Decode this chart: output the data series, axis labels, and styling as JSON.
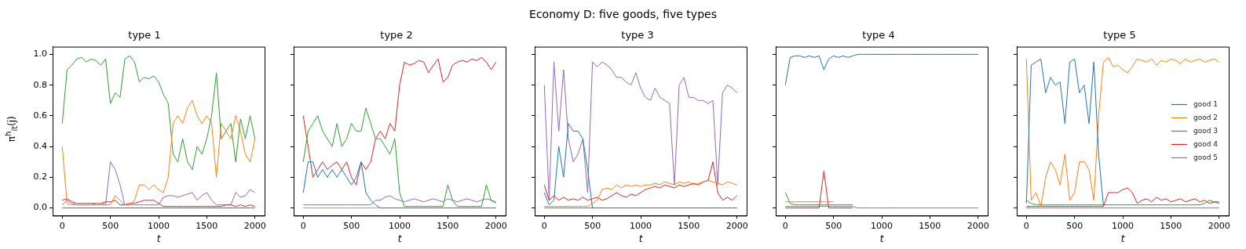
{
  "chart_data": [
    {
      "type": "line",
      "title": "type 1",
      "xlabel": "t",
      "ylabel": "π$^{h}$$_{it}$(j)",
      "annotations": [
        "Economy D: five goods, five types"
      ],
      "grid": false,
      "xlim": [
        -100,
        2100
      ],
      "ylim": [
        -0.05,
        1.05
      ],
      "xticks": [
        0,
        500,
        1000,
        1500,
        2000
      ],
      "yticks": [
        {
          "value": 0,
          "label": "0.0"
        },
        0.2,
        0.4,
        0.6,
        0.8,
        {
          "value": 1,
          "label": "1.0"
        }
      ],
      "x": [
        0,
        50,
        100,
        150,
        200,
        250,
        300,
        350,
        400,
        450,
        500,
        550,
        600,
        650,
        700,
        750,
        800,
        850,
        900,
        950,
        1000,
        1050,
        1100,
        1150,
        1200,
        1250,
        1300,
        1350,
        1400,
        1450,
        1500,
        1550,
        1600,
        1650,
        1700,
        1750,
        1800,
        1850,
        1900,
        1950,
        2000
      ],
      "series": [
        {
          "color": "#1f77b4",
          "values": [
            0,
            0,
            0,
            0,
            0,
            0,
            0,
            0,
            0,
            0,
            0,
            0,
            0,
            0,
            0,
            0,
            0,
            0,
            0,
            0,
            0,
            0,
            0,
            0,
            0,
            0,
            0,
            0,
            0,
            0,
            0,
            0,
            0,
            0,
            0,
            0,
            0,
            0,
            0,
            0,
            0
          ]
        },
        {
          "color": "#ff7f0e",
          "values": [
            0.4,
            0.03,
            0.02,
            0.02,
            0.02,
            0.02,
            0.02,
            0.03,
            0.03,
            0.02,
            0.02,
            0.08,
            0.05,
            0.02,
            0.02,
            0.05,
            0.15,
            0.15,
            0.12,
            0.15,
            0.12,
            0.1,
            0.2,
            0.55,
            0.6,
            0.55,
            0.65,
            0.7,
            0.6,
            0.55,
            0.6,
            0.55,
            0.2,
            0.55,
            0.5,
            0.45,
            0.6,
            0.5,
            0.35,
            0.3,
            0.45
          ]
        },
        {
          "color": "#2ca02c",
          "values": [
            0.55,
            0.9,
            0.93,
            0.97,
            0.98,
            0.95,
            0.97,
            0.96,
            0.93,
            0.97,
            0.68,
            0.75,
            0.72,
            0.97,
            0.99,
            0.95,
            0.82,
            0.85,
            0.84,
            0.86,
            0.82,
            0.74,
            0.68,
            0.35,
            0.3,
            0.45,
            0.3,
            0.25,
            0.4,
            0.35,
            0.45,
            0.6,
            0.88,
            0.45,
            0.5,
            0.55,
            0.3,
            0.58,
            0.45,
            0.6,
            0.45
          ]
        },
        {
          "color": "#d62728",
          "values": [
            0.05,
            0.06,
            0.04,
            0.03,
            0.03,
            0.03,
            0.03,
            0.03,
            0.03,
            0.04,
            0.04,
            0.05,
            0.02,
            0.02,
            0.03,
            0.03,
            0.04,
            0.05,
            0.05,
            0.05,
            0.03,
            0.01,
            0.01,
            0.01,
            0.01,
            0.01,
            0.01,
            0.01,
            0.01,
            0.01,
            0.01,
            0.01,
            0.01,
            0.01,
            0.02,
            0.02,
            0.01,
            0.02,
            0.01,
            0.02,
            0.01
          ]
        },
        {
          "color": "#9467bd",
          "values": [
            0.02,
            0.05,
            0.03,
            0.02,
            0.02,
            0.02,
            0.02,
            0.02,
            0.02,
            0.02,
            0.3,
            0.25,
            0.15,
            0.02,
            0.02,
            0.02,
            0.02,
            0.02,
            0.02,
            0.02,
            0.02,
            0.07,
            0.08,
            0.08,
            0.07,
            0.08,
            0.09,
            0.1,
            0.05,
            0.08,
            0.1,
            0.05,
            0.02,
            0.02,
            0.02,
            0.02,
            0.1,
            0.07,
            0.08,
            0.12,
            0.1
          ]
        }
      ]
    },
    {
      "type": "line",
      "title": "type 2",
      "xlabel": "t",
      "grid": false,
      "tick_labels": "x",
      "xlim": [
        -100,
        2100
      ],
      "ylim": [
        -0.05,
        1.05
      ],
      "xticks": [
        0,
        500,
        1000,
        1500,
        2000
      ],
      "yticks": [
        0,
        0.2,
        0.4,
        0.6,
        0.8,
        1
      ],
      "x": [
        0,
        50,
        100,
        150,
        200,
        250,
        300,
        350,
        400,
        450,
        500,
        550,
        600,
        650,
        700,
        750,
        800,
        850,
        900,
        950,
        1000,
        1050,
        1100,
        1150,
        1200,
        1250,
        1300,
        1350,
        1400,
        1450,
        1500,
        1550,
        1600,
        1650,
        1700,
        1750,
        1800,
        1850,
        1900,
        1950,
        2000
      ],
      "series": [
        {
          "color": "#1f77b4",
          "values": [
            0.1,
            0.3,
            0.3,
            0.2,
            0.25,
            0.2,
            0.25,
            0.2,
            0.25,
            0.2,
            0.15,
            0.2,
            0.3,
            0.1,
            0.05,
            0.02,
            0,
            0,
            0,
            0,
            0,
            0,
            0,
            0,
            0,
            0,
            0,
            0,
            0,
            0,
            0,
            0,
            0,
            0,
            0,
            0,
            0,
            0,
            0,
            0,
            0
          ]
        },
        {
          "color": "#ff7f0e",
          "values": [
            0,
            0,
            0,
            0,
            0,
            0,
            0,
            0,
            0,
            0,
            0,
            0,
            0,
            0,
            0,
            0,
            0,
            null,
            null,
            null,
            null,
            null,
            null,
            null,
            null,
            null,
            null,
            null,
            null,
            null,
            null,
            null,
            null,
            null,
            null,
            null,
            null,
            null,
            null,
            null,
            null
          ]
        },
        {
          "color": "#2ca02c",
          "values": [
            0.3,
            0.5,
            0.55,
            0.6,
            0.5,
            0.45,
            0.4,
            0.55,
            0.4,
            0.45,
            0.55,
            0.5,
            0.5,
            0.65,
            0.55,
            0.45,
            0.45,
            0.4,
            0.35,
            0.45,
            0.1,
            0.01,
            0.01,
            0.01,
            0.01,
            0.01,
            0.01,
            0.01,
            0.01,
            0.01,
            0.15,
            0.05,
            0.01,
            0.01,
            0.01,
            0.01,
            0.01,
            0.01,
            0.15,
            0.05,
            0.03
          ]
        },
        {
          "color": "#d62728",
          "values": [
            0.6,
            0.4,
            0.2,
            0.25,
            0.3,
            0.25,
            0.28,
            0.3,
            0.25,
            0.3,
            0.2,
            0.15,
            0.3,
            0.25,
            0.3,
            0.45,
            0.5,
            0.45,
            0.55,
            0.5,
            0.8,
            0.95,
            0.93,
            0.94,
            0.96,
            0.95,
            0.88,
            0.93,
            0.97,
            0.82,
            0.85,
            0.93,
            0.95,
            0.96,
            0.95,
            0.97,
            0.96,
            0.98,
            0.95,
            0.9,
            0.95
          ]
        },
        {
          "color": "#9467bd",
          "values": [
            0.02,
            0.02,
            0.02,
            0.02,
            0.02,
            0.02,
            0.02,
            0.02,
            0.02,
            0.02,
            0.02,
            0.02,
            0.02,
            0.02,
            0.02,
            0.05,
            0.05,
            0.07,
            0.08,
            0.06,
            0.05,
            0.04,
            0.05,
            0.06,
            0.05,
            0.04,
            0.05,
            0.06,
            0.05,
            0.04,
            0.06,
            0.05,
            0.04,
            0.05,
            0.06,
            0.05,
            0.04,
            0.05,
            0.06,
            0.05,
            0.04
          ]
        }
      ]
    },
    {
      "type": "line",
      "title": "type 3",
      "xlabel": "t",
      "grid": false,
      "tick_labels": "x",
      "xlim": [
        -100,
        2100
      ],
      "ylim": [
        -0.05,
        1.05
      ],
      "xticks": [
        0,
        500,
        1000,
        1500,
        2000
      ],
      "yticks": [
        0,
        0.2,
        0.4,
        0.6,
        0.8,
        1
      ],
      "x": [
        0,
        50,
        100,
        150,
        200,
        250,
        300,
        350,
        400,
        450,
        500,
        550,
        600,
        650,
        700,
        750,
        800,
        850,
        900,
        950,
        1000,
        1050,
        1100,
        1150,
        1200,
        1250,
        1300,
        1350,
        1400,
        1450,
        1500,
        1550,
        1600,
        1650,
        1700,
        1750,
        1800,
        1850,
        1900,
        1950,
        2000
      ],
      "series": [
        {
          "color": "#1f77b4",
          "values": [
            0.1,
            0.02,
            0.05,
            0.4,
            0.2,
            0.55,
            0.5,
            0.5,
            0.45,
            0.25,
            0,
            0,
            0,
            0,
            0,
            0,
            0,
            0,
            0,
            0,
            0,
            0,
            0,
            0,
            0,
            0,
            0,
            0,
            0,
            0,
            0,
            0,
            0,
            0,
            0,
            0,
            0,
            0,
            0,
            0,
            0
          ]
        },
        {
          "color": "#ff7f0e",
          "values": [
            0.01,
            0.01,
            0.01,
            0.01,
            0.01,
            0.01,
            0.01,
            0.01,
            0.01,
            0.01,
            0.03,
            0.05,
            0.12,
            0.13,
            0.12,
            0.15,
            0.13,
            0.15,
            0.14,
            0.15,
            0.14,
            0.15,
            0.15,
            0.16,
            0.15,
            0.17,
            0.16,
            0.15,
            0.17,
            0.16,
            0.17,
            0.15,
            0.16,
            0.17,
            0.18,
            0.17,
            0.16,
            0.15,
            0.17,
            0.16,
            0.15
          ]
        },
        {
          "color": "#2ca02c",
          "values": [
            0,
            0,
            0,
            0,
            0,
            0,
            0,
            0,
            0,
            0,
            0,
            null,
            null,
            null,
            null,
            null,
            null,
            null,
            null,
            null,
            null,
            null,
            null,
            null,
            null,
            null,
            null,
            null,
            null,
            null,
            null,
            null,
            null,
            null,
            null,
            null,
            null,
            null,
            null,
            null,
            null
          ]
        },
        {
          "color": "#d62728",
          "values": [
            0.15,
            0.05,
            0.08,
            0.05,
            0.07,
            0.05,
            0.06,
            0.05,
            0.07,
            0.05,
            0.06,
            0.07,
            0.05,
            0.06,
            0.08,
            0.1,
            0.08,
            0.07,
            0.09,
            0.08,
            0.1,
            0.12,
            0.13,
            0.14,
            0.13,
            0.15,
            0.14,
            0.13,
            0.15,
            0.14,
            0.15,
            0.16,
            0.15,
            0.17,
            0.18,
            0.3,
            0.1,
            0.05,
            0.07,
            0.05,
            0.08
          ]
        },
        {
          "color": "#9467bd",
          "values": [
            0.8,
            0.05,
            0.95,
            0.5,
            0.9,
            0.45,
            0.3,
            0.35,
            0.45,
            0.1,
            0.95,
            0.92,
            0.95,
            0.93,
            0.9,
            0.85,
            0.85,
            0.82,
            0.8,
            0.88,
            0.78,
            0.72,
            0.7,
            0.78,
            0.72,
            0.7,
            0.68,
            0.15,
            0.8,
            0.85,
            0.72,
            0.72,
            0.7,
            0.7,
            0.68,
            0.7,
            0.15,
            0.75,
            0.8,
            0.78,
            0.75
          ]
        }
      ]
    },
    {
      "type": "line",
      "title": "type 4",
      "xlabel": "t",
      "grid": false,
      "tick_labels": "x",
      "xlim": [
        -100,
        2100
      ],
      "ylim": [
        -0.05,
        1.05
      ],
      "xticks": [
        0,
        500,
        1000,
        1500,
        2000
      ],
      "yticks": [
        0,
        0.2,
        0.4,
        0.6,
        0.8,
        1
      ],
      "x": [
        0,
        50,
        100,
        150,
        200,
        250,
        300,
        350,
        400,
        450,
        500,
        550,
        600,
        650,
        700,
        750,
        800,
        850,
        900,
        950,
        1000,
        1050,
        1100,
        1150,
        1200,
        1250,
        1300,
        1350,
        1400,
        1450,
        1500,
        1550,
        1600,
        1650,
        1700,
        1750,
        1800,
        1850,
        1900,
        1950,
        2000
      ],
      "series": [
        {
          "color": "#1f77b4",
          "values": [
            0.8,
            0.98,
            0.99,
            0.99,
            0.98,
            0.99,
            0.98,
            0.99,
            0.9,
            0.97,
            0.99,
            0.98,
            0.99,
            0.98,
            0.99,
            1,
            1,
            1,
            1,
            1,
            1,
            1,
            1,
            1,
            1,
            1,
            1,
            1,
            1,
            1,
            1,
            1,
            1,
            1,
            1,
            1,
            1,
            1,
            1,
            1,
            1
          ]
        },
        {
          "color": "#ff7f0e",
          "values": [
            0.04,
            0.04,
            0.04,
            0.04,
            0.04,
            0.04,
            0.04,
            0.04,
            0.04,
            0.04,
            0.04,
            null,
            null,
            null,
            null,
            null,
            null,
            null,
            null,
            null,
            null,
            null,
            null,
            null,
            null,
            null,
            null,
            null,
            null,
            null,
            null,
            null,
            null,
            null,
            null,
            null,
            null,
            null,
            null,
            null,
            null
          ]
        },
        {
          "color": "#2ca02c",
          "values": [
            0.1,
            0.03,
            0.02,
            0.02,
            0.02,
            0.02,
            0.02,
            0.02,
            0.02,
            0.02,
            0.02,
            0.02,
            0.02,
            0.02,
            0.02,
            null,
            null,
            null,
            null,
            null,
            null,
            null,
            null,
            null,
            null,
            null,
            null,
            null,
            null,
            null,
            null,
            null,
            null,
            null,
            null,
            null,
            null,
            null,
            null,
            null,
            null
          ]
        },
        {
          "color": "#d62728",
          "values": [
            0,
            0,
            0,
            0,
            0,
            0,
            0,
            0,
            0.24,
            0,
            0,
            0,
            0,
            0,
            0,
            null,
            null,
            null,
            null,
            null,
            null,
            null,
            null,
            null,
            null,
            null,
            null,
            null,
            null,
            null,
            null,
            null,
            null,
            null,
            null,
            null,
            null,
            null,
            null,
            null,
            null
          ]
        },
        {
          "color": "#9467bd",
          "values": [
            0.01,
            0.01,
            0.01,
            0.01,
            0.01,
            0.01,
            0.01,
            0.01,
            0.01,
            0.01,
            0.01,
            0.01,
            0.01,
            0.01,
            0.01,
            0,
            0,
            0,
            0,
            0,
            0,
            0,
            0,
            0,
            0,
            0,
            0,
            0,
            0,
            0,
            0,
            0,
            0,
            0,
            0,
            0,
            0,
            0,
            0,
            0,
            0
          ]
        }
      ]
    },
    {
      "type": "line",
      "title": "type 5",
      "xlabel": "t",
      "grid": false,
      "tick_labels": "x",
      "legend": "right",
      "xlim": [
        -100,
        2100
      ],
      "ylim": [
        -0.05,
        1.05
      ],
      "xticks": [
        0,
        500,
        1000,
        1500,
        2000
      ],
      "yticks": [
        0,
        0.2,
        0.4,
        0.6,
        0.8,
        1
      ],
      "x": [
        0,
        50,
        100,
        150,
        200,
        250,
        300,
        350,
        400,
        450,
        500,
        550,
        600,
        650,
        700,
        750,
        800,
        850,
        900,
        950,
        1000,
        1050,
        1100,
        1150,
        1200,
        1250,
        1300,
        1350,
        1400,
        1450,
        1500,
        1550,
        1600,
        1650,
        1700,
        1750,
        1800,
        1850,
        1900,
        1950,
        2000
      ],
      "series": [
        {
          "name": "good 1",
          "color": "#1f77b4",
          "values": [
            0.03,
            0.93,
            0.95,
            0.97,
            0.75,
            0.85,
            0.8,
            0.82,
            0.55,
            0.95,
            0.97,
            0.75,
            0.8,
            0.55,
            0.95,
            0.35,
            0.01,
            null,
            null,
            null,
            null,
            null,
            null,
            null,
            null,
            null,
            null,
            null,
            null,
            null,
            null,
            null,
            null,
            null,
            null,
            null,
            null,
            null,
            null,
            null,
            null
          ]
        },
        {
          "name": "good 2",
          "color": "#ff7f0e",
          "values": [
            0.97,
            0.05,
            0.1,
            0.01,
            0.2,
            0.3,
            0.25,
            0.15,
            0.35,
            0.05,
            0.1,
            0.3,
            0.3,
            0.25,
            0.05,
            0.6,
            0.95,
            0.98,
            0.92,
            0.93,
            0.9,
            0.88,
            0.92,
            0.97,
            0.96,
            0.95,
            0.97,
            0.93,
            0.96,
            0.95,
            0.97,
            0.96,
            0.94,
            0.97,
            0.95,
            0.96,
            0.97,
            0.95,
            0.96,
            0.97,
            0.95
          ]
        },
        {
          "name": "good 3",
          "color": "#2ca02c",
          "values": [
            0.05,
            0.03,
            0.02,
            0.02,
            0.02,
            0.02,
            0.02,
            0.02,
            0.02,
            0.02,
            0.02,
            0.02,
            0.02,
            0.02,
            0.02,
            0.02,
            0.02,
            0.02,
            0.02,
            0.02,
            0.02,
            0.02,
            0.02,
            0.02,
            0.02,
            0.02,
            0.02,
            0.02,
            0.02,
            0.02,
            0.02,
            0.02,
            0.02,
            0.02,
            0.02,
            0.02,
            0.02,
            0.03,
            0.05,
            0.04,
            0.04
          ]
        },
        {
          "name": "good 4",
          "color": "#d62728",
          "values": [
            0.01,
            0.01,
            0.01,
            0.01,
            0.01,
            0.01,
            0.01,
            0.01,
            0.01,
            0.01,
            0.01,
            0.01,
            0.01,
            0.01,
            0.01,
            0.01,
            0.01,
            0.1,
            0.1,
            0.1,
            0.12,
            0.13,
            0.1,
            0.03,
            0.05,
            0.06,
            0.04,
            0.07,
            0.05,
            0.06,
            0.04,
            0.05,
            0.06,
            0.04,
            0.05,
            0.06,
            0.04,
            0.05,
            0.03,
            0.04,
            0.03
          ]
        },
        {
          "name": "good 5",
          "color": "#9467bd",
          "values": [
            0,
            0,
            0,
            0,
            0,
            0,
            0,
            0,
            0,
            0,
            0,
            0,
            0,
            0,
            0,
            0,
            0,
            0,
            0,
            0,
            0,
            0,
            0,
            0,
            0,
            0,
            0,
            0,
            0,
            0,
            0,
            0,
            0,
            0,
            0,
            0,
            0,
            0,
            0,
            0,
            0
          ]
        }
      ]
    }
  ]
}
